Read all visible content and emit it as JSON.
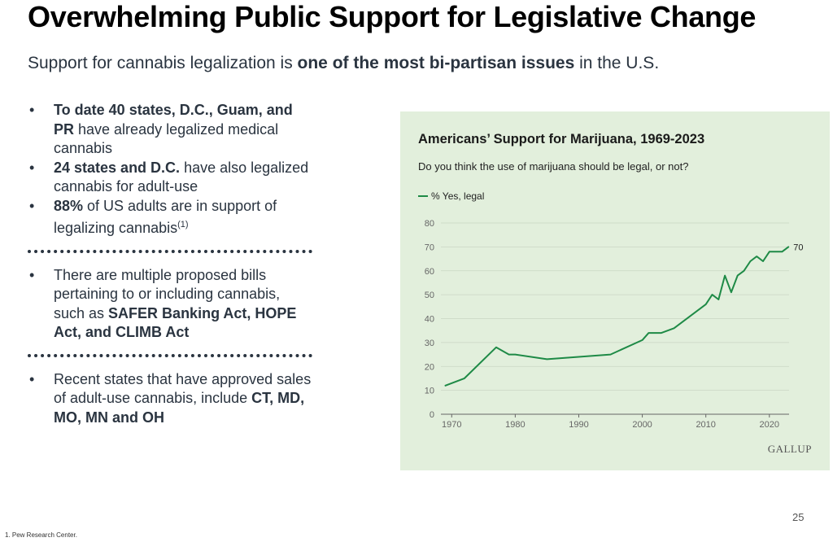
{
  "slide": {
    "title": "Overwhelming Public Support for Legislative Change",
    "subtitle_pre": "Support for cannabis legalization is ",
    "subtitle_bold": "one of the most bi-partisan issues",
    "subtitle_post": " in the U.S.",
    "page_number": "25",
    "footnote": "1. Pew Research Center."
  },
  "bullets": {
    "b1_bold": "To date 40 states, D.C., Guam, and PR",
    "b1_rest": " have already legalized medical cannabis",
    "b2_bold": "24 states and D.C.",
    "b2_rest": " have also legalized cannabis for adult-use",
    "b3_bold": "88%",
    "b3_rest": " of US adults are in support of legalizing cannabis",
    "b3_sup": "(1)",
    "b4_pre": "There are multiple proposed bills pertaining to or including cannabis, such as ",
    "b4_bold": "SAFER Banking Act, HOPE Act, and CLIMB Act",
    "b5_pre": "Recent states that have approved sales of adult-use cannabis, include ",
    "b5_bold": "CT, MD, MO, MN and OH",
    "bullet_char": "•"
  },
  "chart_data": {
    "type": "line",
    "title": "Americans’ Support for Marijuana, 1969-2023",
    "subtitle": "Do you think the use of marijuana should be legal, or not?",
    "source": "GALLUP",
    "xlabel": "",
    "ylabel": "",
    "xlim": [
      1969,
      2023
    ],
    "ylim": [
      0,
      80
    ],
    "xticks": [
      1970,
      1980,
      1990,
      2000,
      2010,
      2020
    ],
    "yticks": [
      0,
      10,
      20,
      30,
      40,
      50,
      60,
      70,
      80
    ],
    "grid": true,
    "legend_position": "top-left",
    "series": [
      {
        "name": "% Yes, legal",
        "color": "#1e8a46",
        "end_label": "70",
        "x": [
          1969,
          1972,
          1977,
          1979,
          1980,
          1985,
          1995,
          2000,
          2001,
          2003,
          2005,
          2009,
          2010,
          2011,
          2012,
          2013,
          2014,
          2015,
          2016,
          2017,
          2018,
          2019,
          2020,
          2021,
          2022,
          2023
        ],
        "values": [
          12,
          15,
          28,
          25,
          25,
          23,
          25,
          31,
          34,
          34,
          36,
          44,
          46,
          50,
          48,
          58,
          51,
          58,
          60,
          64,
          66,
          64,
          68,
          68,
          68,
          70
        ]
      }
    ]
  }
}
